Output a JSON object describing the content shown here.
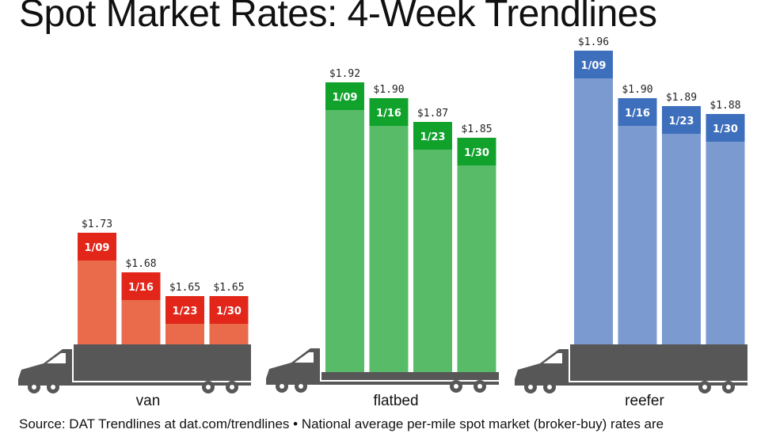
{
  "title": "Spot Market Rates: 4-Week Trendlines",
  "source": "Source: DAT Trendlines at dat.com/trendlines • National average per-mile spot market (broker-buy) rates are",
  "colors": {
    "van": "#ea6a4c",
    "van_cap": "#e2261a",
    "flatbed": "#58bb68",
    "flatbed_cap": "#11a22c",
    "reefer": "#7b9ad0",
    "reefer_cap": "#3d6fbd",
    "truck": "#575757"
  },
  "chart_data": {
    "type": "bar",
    "title": "Spot Market Rates: 4-Week Trendlines",
    "categories": [
      "1/09",
      "1/16",
      "1/23",
      "1/30"
    ],
    "series": [
      {
        "name": "van",
        "values": [
          1.73,
          1.68,
          1.65,
          1.65
        ],
        "value_labels": [
          "$1.73",
          "$1.68",
          "$1.65",
          "$1.65"
        ]
      },
      {
        "name": "flatbed",
        "values": [
          1.92,
          1.9,
          1.87,
          1.85
        ],
        "value_labels": [
          "$1.92",
          "$1.90",
          "$1.87",
          "$1.85"
        ]
      },
      {
        "name": "reefer",
        "values": [
          1.96,
          1.9,
          1.89,
          1.88
        ],
        "value_labels": [
          "$1.96",
          "$1.90",
          "$1.89",
          "$1.88"
        ]
      }
    ],
    "unit": "$ per mile",
    "grid": false,
    "legend": "none"
  }
}
